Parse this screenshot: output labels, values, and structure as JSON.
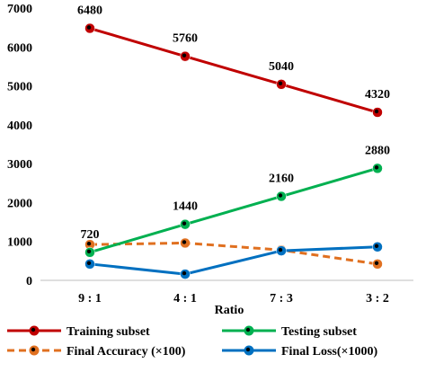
{
  "chart_data": {
    "type": "line",
    "xlabel": "Ratio",
    "ylabel": "",
    "categories": [
      "9 : 1",
      "4 : 1",
      "7 : 3",
      "3 : 2"
    ],
    "ylim": [
      0,
      7000
    ],
    "yticks": [
      "0",
      "1000",
      "2000",
      "3000",
      "4000",
      "5000",
      "6000",
      "7000"
    ],
    "grid": false,
    "legend_position": "bottom",
    "series": [
      {
        "name": "Training subset",
        "values": [
          6480,
          5760,
          5040,
          4320
        ],
        "color": "#c00000",
        "line_style": "solid",
        "labels": [
          "6480",
          "5760",
          "5040",
          "4320"
        ]
      },
      {
        "name": "Testing subset",
        "values": [
          720,
          1440,
          2160,
          2880
        ],
        "color": "#00b050",
        "line_style": "solid",
        "labels": [
          "720",
          "1440",
          "2160",
          "2880"
        ]
      },
      {
        "name": "Final Accuracy (×100)",
        "values": [
          920,
          960,
          780,
          420
        ],
        "color": "#e07020",
        "line_style": "dashed",
        "labels": []
      },
      {
        "name": "Final Loss(×1000)",
        "values": [
          420,
          160,
          760,
          860
        ],
        "color": "#0070c0",
        "line_style": "solid",
        "labels": []
      }
    ]
  }
}
